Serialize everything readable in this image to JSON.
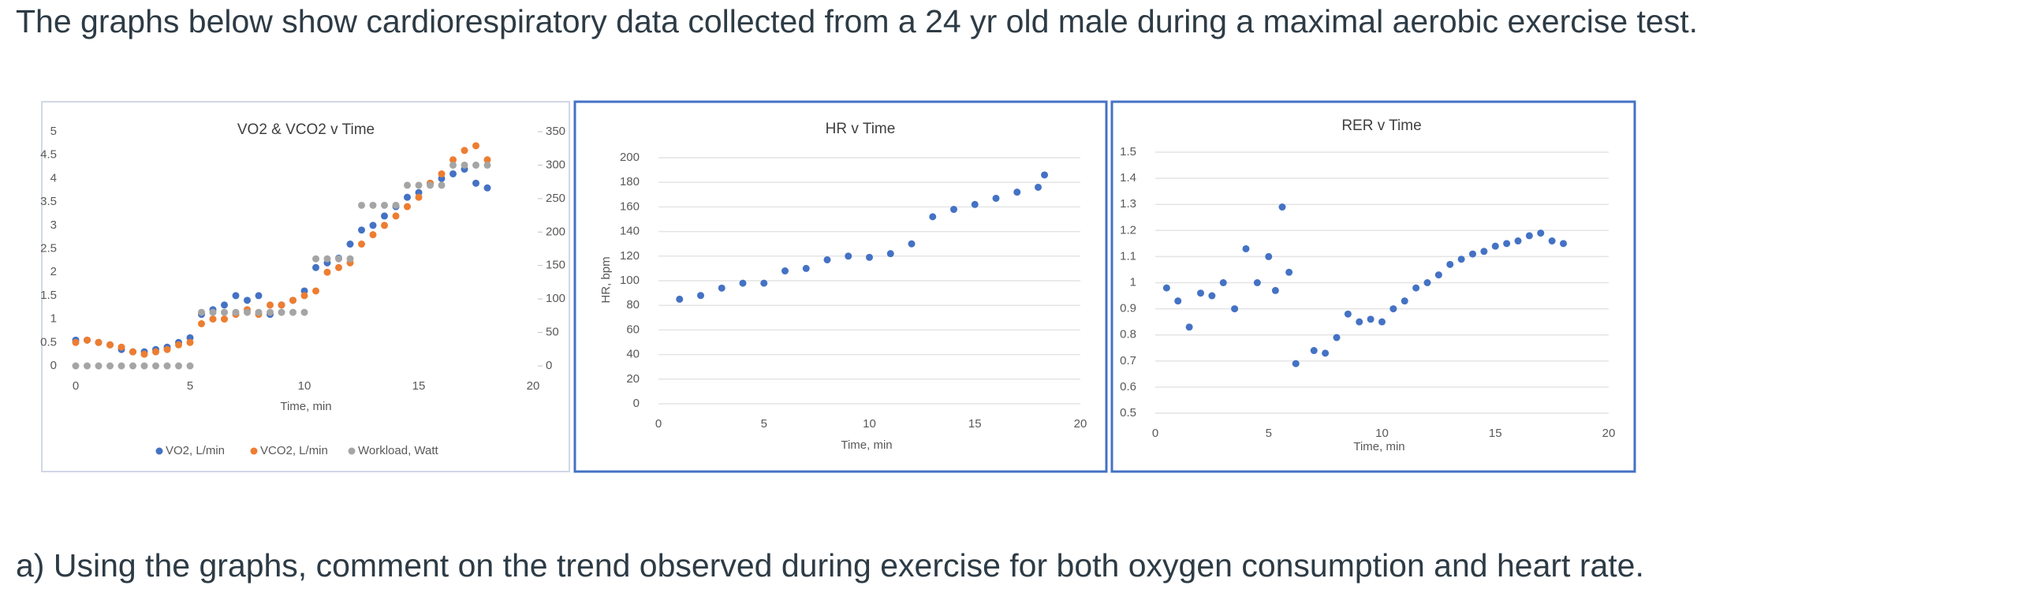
{
  "intro": "The graphs below show cardiorespiratory data collected from a 24 yr old male during a maximal aerobic exercise test.",
  "question": "a) Using the graphs, comment on the trend observed during exercise for both oxygen consumption and heart rate.",
  "chart_data": [
    {
      "type": "scatter",
      "title": "VO2 & VCO2 v Time",
      "x_label": "Time, min",
      "legend": "bottom",
      "grid": false,
      "x": [
        0,
        0.5,
        1,
        1.5,
        2,
        2.5,
        3,
        3.5,
        4,
        4.5,
        5,
        5.5,
        6,
        6.5,
        7,
        7.5,
        8,
        8.5,
        9,
        9.5,
        10,
        10.5,
        11,
        11.5,
        12,
        12.5,
        13,
        13.5,
        14,
        14.5,
        15,
        15.5,
        16,
        16.5,
        17,
        17.5,
        18
      ],
      "xlim": [
        0,
        20
      ],
      "xticks": [
        0,
        5,
        10,
        15,
        20
      ],
      "ylim": [
        0,
        5
      ],
      "yticks": [
        0,
        0.5,
        1,
        1.5,
        2,
        2.5,
        3,
        3.5,
        4,
        4.5,
        5
      ],
      "y2lim": [
        0,
        350
      ],
      "y2ticks": [
        0,
        50,
        100,
        150,
        200,
        250,
        300,
        350
      ],
      "series": [
        {
          "name": "VO2, L/min",
          "color": "#4472c4",
          "values": [
            0.55,
            0.55,
            0.5,
            0.45,
            0.35,
            0.3,
            0.3,
            0.35,
            0.4,
            0.5,
            0.6,
            1.1,
            1.2,
            1.3,
            1.5,
            1.4,
            1.5,
            1.1,
            1.3,
            1.4,
            1.6,
            2.1,
            2.2,
            2.3,
            2.6,
            2.9,
            3.0,
            3.2,
            3.4,
            3.6,
            3.7,
            3.9,
            4.0,
            4.1,
            4.2,
            3.9,
            3.8
          ]
        },
        {
          "name": "VCO2, L/min",
          "color": "#ed7d31",
          "values": [
            0.5,
            0.55,
            0.5,
            0.45,
            0.4,
            0.3,
            0.25,
            0.3,
            0.35,
            0.45,
            0.5,
            0.9,
            1.0,
            1.0,
            1.1,
            1.2,
            1.1,
            1.3,
            1.3,
            1.4,
            1.5,
            1.6,
            2.0,
            2.1,
            2.2,
            2.6,
            2.8,
            3.0,
            3.2,
            3.4,
            3.6,
            3.9,
            4.1,
            4.4,
            4.6,
            4.7,
            4.4
          ]
        },
        {
          "name": "Workload, Watt",
          "color": "#a5a5a5",
          "axis": "y2",
          "values": [
            0,
            0,
            0,
            0,
            0,
            0,
            0,
            0,
            0,
            0,
            0,
            80,
            80,
            80,
            80,
            80,
            80,
            80,
            80,
            80,
            80,
            160,
            160,
            160,
            160,
            240,
            240,
            240,
            240,
            270,
            270,
            270,
            270,
            300,
            300,
            300,
            300
          ]
        }
      ]
    },
    {
      "type": "scatter",
      "title": "HR v Time",
      "x_label": "Time, min",
      "y_label": "HR, bpm",
      "grid": true,
      "color": "#4472c4",
      "x": [
        1,
        2,
        3,
        4,
        5,
        6,
        7,
        8,
        9,
        10,
        11,
        12,
        13,
        14,
        15,
        16,
        17,
        18,
        18.3
      ],
      "values": [
        85,
        88,
        94,
        98,
        98,
        108,
        110,
        117,
        120,
        119,
        122,
        130,
        152,
        158,
        162,
        167,
        172,
        176,
        186
      ],
      "xlim": [
        0,
        20
      ],
      "xticks": [
        0,
        5,
        10,
        15,
        20
      ],
      "ylim": [
        0,
        200
      ],
      "yticks": [
        0,
        20,
        40,
        60,
        80,
        100,
        120,
        140,
        160,
        180,
        200
      ]
    },
    {
      "type": "scatter",
      "title": "RER v Time",
      "x_label": "Time, min",
      "grid": true,
      "color": "#4472c4",
      "x": [
        0.5,
        1,
        1.5,
        2,
        2.5,
        3,
        3.5,
        4,
        4.5,
        5,
        5.3,
        5.6,
        5.9,
        6.2,
        7,
        7.5,
        8,
        8.5,
        9,
        9.5,
        10,
        10.5,
        11,
        11.5,
        12,
        12.5,
        13,
        13.5,
        14,
        14.5,
        15,
        15.5,
        16,
        16.5,
        17,
        17.5,
        18
      ],
      "values": [
        0.98,
        0.93,
        0.83,
        0.96,
        0.95,
        1.0,
        0.9,
        1.13,
        1.0,
        1.1,
        0.97,
        1.29,
        1.04,
        0.69,
        0.74,
        0.73,
        0.79,
        0.88,
        0.85,
        0.86,
        0.85,
        0.9,
        0.93,
        0.98,
        1.0,
        1.03,
        1.07,
        1.09,
        1.11,
        1.12,
        1.14,
        1.15,
        1.16,
        1.18,
        1.19,
        1.16,
        1.15
      ],
      "xlim": [
        0,
        20
      ],
      "xticks": [
        0,
        5,
        10,
        15,
        20
      ],
      "ylim": [
        0.5,
        1.5
      ],
      "yticks": [
        0.5,
        0.6,
        0.7,
        0.8,
        0.9,
        1,
        1.1,
        1.2,
        1.3,
        1.4,
        1.5
      ]
    }
  ]
}
